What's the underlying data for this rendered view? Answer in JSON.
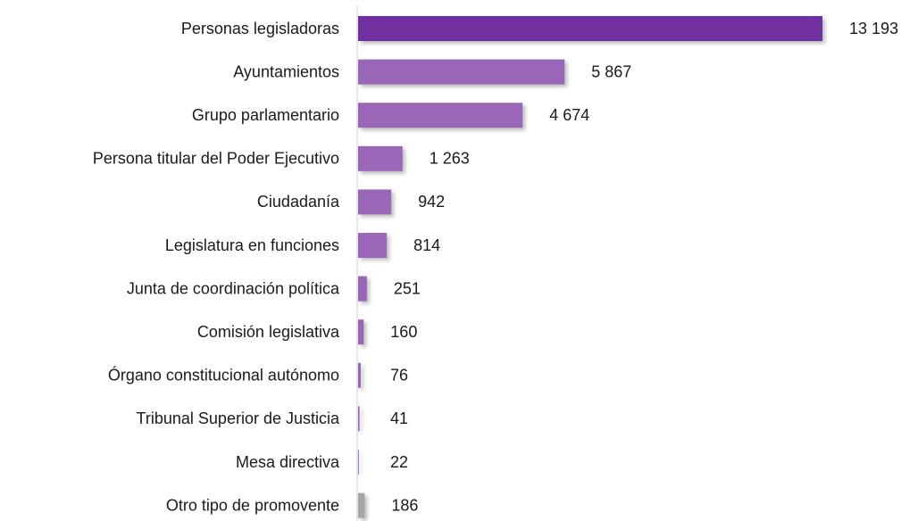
{
  "chart_data": {
    "type": "barh",
    "categories": [
      "Personas legisladoras",
      "Ayuntamientos",
      "Grupo parlamentario",
      "Persona titular del Poder Ejecutivo",
      "Ciudadanía",
      "Legislatura en funciones",
      "Junta de coordinación política",
      "Comisión legislativa",
      "Órgano constitucional autónomo",
      "Tribunal Superior de Justicia",
      "Mesa directiva",
      "Otro tipo de promovente"
    ],
    "values": [
      13193,
      5867,
      4674,
      1263,
      942,
      814,
      251,
      160,
      76,
      41,
      22,
      186
    ],
    "value_labels": [
      "13 193",
      "5 867",
      "4 674",
      "1 263",
      "942",
      "814",
      "251",
      "160",
      "76",
      "41",
      "22",
      "186"
    ],
    "colors": [
      "#7030a0",
      "#9966b8",
      "#9966b8",
      "#9966b8",
      "#9966b8",
      "#9966b8",
      "#9966b8",
      "#9966b8",
      "#9966b8",
      "#9966b8",
      "#9966b8",
      "#a6a6a6"
    ]
  }
}
